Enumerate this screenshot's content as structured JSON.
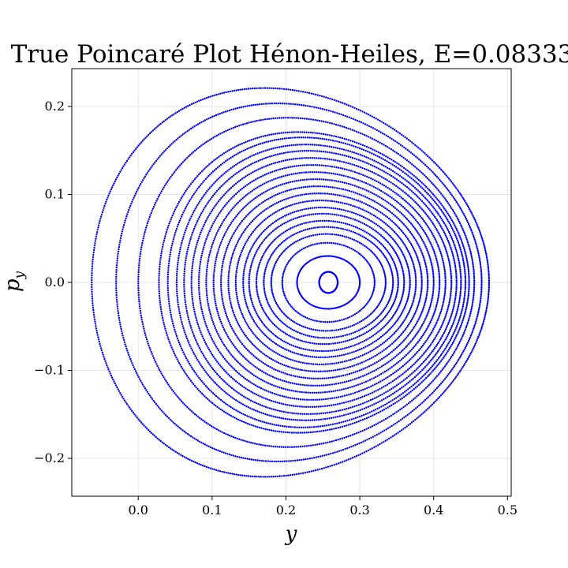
{
  "chart_data": {
    "type": "scatter",
    "title": "True Poincaré Plot Hénon-Heiles, E=0.08333",
    "xlabel": "y",
    "ylabel": "p_y",
    "ylabel_main": "p",
    "ylabel_sub": "y",
    "xlim": [
      -0.09,
      0.505
    ],
    "ylim": [
      -0.243,
      0.243
    ],
    "grid": true,
    "marker_color": "#0000ff",
    "x_ticks": [
      0.0,
      0.1,
      0.2,
      0.3,
      0.4,
      0.5
    ],
    "x_tick_labels": [
      "0.0",
      "0.1",
      "0.2",
      "0.3",
      "0.4",
      "0.5"
    ],
    "y_ticks": [
      -0.2,
      -0.1,
      0.0,
      0.1,
      0.2
    ],
    "y_tick_labels": [
      "−0.2",
      "−0.1",
      "0.0",
      "0.1",
      "0.2"
    ],
    "center": {
      "y": 0.255,
      "p_y": 0.0
    },
    "series": [
      {
        "left": 0.245,
        "right": 0.27,
        "p_max": 0.012
      },
      {
        "left": 0.215,
        "right": 0.3,
        "p_max": 0.03
      },
      {
        "left": 0.195,
        "right": 0.32,
        "p_max": 0.045
      },
      {
        "left": 0.18,
        "right": 0.335,
        "p_max": 0.055
      },
      {
        "left": 0.17,
        "right": 0.345,
        "p_max": 0.063
      },
      {
        "left": 0.16,
        "right": 0.352,
        "p_max": 0.07
      },
      {
        "left": 0.15,
        "right": 0.36,
        "p_max": 0.078
      },
      {
        "left": 0.142,
        "right": 0.368,
        "p_max": 0.085
      },
      {
        "left": 0.132,
        "right": 0.376,
        "p_max": 0.093
      },
      {
        "left": 0.122,
        "right": 0.384,
        "p_max": 0.101
      },
      {
        "left": 0.112,
        "right": 0.392,
        "p_max": 0.109
      },
      {
        "left": 0.102,
        "right": 0.4,
        "p_max": 0.117
      },
      {
        "left": 0.092,
        "right": 0.408,
        "p_max": 0.125
      },
      {
        "left": 0.082,
        "right": 0.416,
        "p_max": 0.133
      },
      {
        "left": 0.072,
        "right": 0.424,
        "p_max": 0.141
      },
      {
        "left": 0.062,
        "right": 0.431,
        "p_max": 0.149
      },
      {
        "left": 0.052,
        "right": 0.437,
        "p_max": 0.156
      },
      {
        "left": 0.04,
        "right": 0.443,
        "p_max": 0.164
      },
      {
        "left": 0.028,
        "right": 0.448,
        "p_max": 0.17
      },
      {
        "left": 0.0,
        "right": 0.455,
        "p_max": 0.186
      },
      {
        "left": -0.03,
        "right": 0.465,
        "p_max": 0.202
      },
      {
        "left": -0.063,
        "right": 0.475,
        "p_max": 0.219
      }
    ]
  }
}
